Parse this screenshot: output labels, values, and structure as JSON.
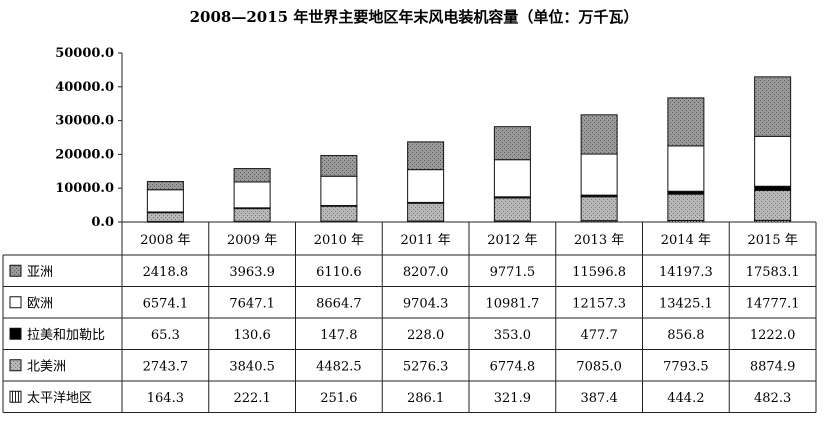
{
  "chart_data": {
    "type": "bar",
    "stacked": true,
    "title": "2008—2015 年世界主要地区年末风电装机容量（单位：万千瓦）",
    "categories": [
      "2008 年",
      "2009 年",
      "2010 年",
      "2011 年",
      "2012 年",
      "2013 年",
      "2014 年",
      "2015 年"
    ],
    "ylim": [
      0,
      50000
    ],
    "yticks": [
      "0.0",
      "10000.0",
      "20000.0",
      "30000.0",
      "40000.0",
      "50000.0"
    ],
    "series": [
      {
        "name": "亚洲",
        "values": [
          2418.8,
          3963.9,
          6110.6,
          8207.0,
          9771.5,
          11596.8,
          14197.3,
          17583.1
        ],
        "labels": [
          "2418.8",
          "3963.9",
          "6110.6",
          "8207.0",
          "9771.5",
          "11596.8",
          "14197.3",
          "17583.1"
        ]
      },
      {
        "name": "欧洲",
        "values": [
          6574.1,
          7647.1,
          8664.7,
          9704.3,
          10981.7,
          12157.3,
          13425.1,
          14777.1
        ],
        "labels": [
          "6574.1",
          "7647.1",
          "8664.7",
          "9704.3",
          "10981.7",
          "12157.3",
          "13425.1",
          "14777.1"
        ]
      },
      {
        "name": "拉美和加勒比",
        "values": [
          65.3,
          130.6,
          147.8,
          228.0,
          353.0,
          477.7,
          856.8,
          1222.0
        ],
        "labels": [
          "65.3",
          "130.6",
          "147.8",
          "228.0",
          "353.0",
          "477.7",
          "856.8",
          "1222.0"
        ]
      },
      {
        "name": "北美洲",
        "values": [
          2743.7,
          3840.5,
          4482.5,
          5276.3,
          6774.8,
          7085.0,
          7793.5,
          8874.9
        ],
        "labels": [
          "2743.7",
          "3840.5",
          "4482.5",
          "5276.3",
          "6774.8",
          "7085.0",
          "7793.5",
          "8874.9"
        ]
      },
      {
        "name": "太平洋地区",
        "values": [
          164.3,
          222.1,
          251.6,
          286.1,
          321.9,
          387.4,
          444.2,
          482.3
        ],
        "labels": [
          "164.3",
          "222.1",
          "251.6",
          "286.1",
          "321.9",
          "387.4",
          "444.2",
          "482.3"
        ]
      }
    ],
    "grid": false,
    "legend": "data-table"
  }
}
